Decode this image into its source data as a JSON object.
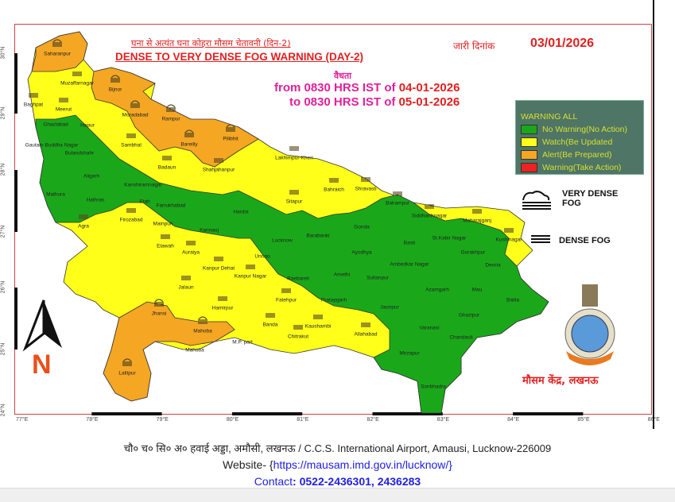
{
  "header": {
    "title_hindi": "घना से अत्यंत घना कोहरा मौसम चेतावनी (दिन-2)",
    "title_english": "DENSE TO VERY DENSE FOG WARNING (DAY-2)",
    "issued_label": "जारी दिनांक",
    "issued_date": "03/01/2026",
    "validity_label": "वैधता",
    "from_text": "from 0830 HRS IST of",
    "from_date": "04-01-2026",
    "to_text": "to 0830 HRS IST of",
    "to_date": "05-01-2026"
  },
  "legend": {
    "title": "WARNING ALL",
    "items": [
      {
        "label": "No Warning(No Action)",
        "color": "#1aa81a"
      },
      {
        "label": "Watch(Be Updated",
        "color": "#ffff1a"
      },
      {
        "label": "Alert(Be Prepared)",
        "color": "#f5a623"
      },
      {
        "label": "Warning(Take Action)",
        "color": "#ee2222"
      }
    ],
    "very_dense_fog": "VERY DENSE FOG",
    "dense_fog": "DENSE FOG"
  },
  "colors": {
    "green": "#1aa81a",
    "yellow": "#ffff1a",
    "orange": "#f5a623",
    "red": "#ee2222",
    "accent": "#e02020"
  },
  "axes": {
    "longitude_ticks": [
      "77°E",
      "78°E",
      "79°E",
      "80°E",
      "81°E",
      "82°E",
      "83°E",
      "84°E",
      "85°E",
      "86°E"
    ],
    "latitude_ticks": [
      "30°N",
      "29°N",
      "28°N",
      "27°N",
      "26°N",
      "25°N",
      "24°N"
    ]
  },
  "north_label": "N",
  "office_name": "मौसम केंद्र, लखनऊ",
  "districts": [
    {
      "name": "Saharanpur",
      "level": "alert",
      "fog": "very-dense"
    },
    {
      "name": "Muzaffarnagar",
      "level": "watch",
      "fog": "dense"
    },
    {
      "name": "Baghpat",
      "level": "watch",
      "fog": "dense"
    },
    {
      "name": "Meerut",
      "level": "watch",
      "fog": "dense"
    },
    {
      "name": "Ghaziabad",
      "level": "none",
      "fog": ""
    },
    {
      "name": "Hapur",
      "level": "none",
      "fog": ""
    },
    {
      "name": "Gautam Buddha Nagar",
      "level": "none",
      "fog": ""
    },
    {
      "name": "Bulandshahr",
      "level": "none",
      "fog": ""
    },
    {
      "name": "Bijnor",
      "level": "alert",
      "fog": "very-dense"
    },
    {
      "name": "Moradabad",
      "level": "alert",
      "fog": "very-dense"
    },
    {
      "name": "Rampur",
      "level": "alert",
      "fog": "very-dense"
    },
    {
      "name": "Bareilly",
      "level": "alert",
      "fog": "very-dense"
    },
    {
      "name": "Pilibhit",
      "level": "alert",
      "fog": "very-dense"
    },
    {
      "name": "Sambhal",
      "level": "watch",
      "fog": "dense"
    },
    {
      "name": "Badaun",
      "level": "watch",
      "fog": "dense"
    },
    {
      "name": "Shahjahanpur",
      "level": "watch",
      "fog": "dense"
    },
    {
      "name": "Lakhimpur-Kheri",
      "level": "watch",
      "fog": "dense"
    },
    {
      "name": "Sitapur",
      "level": "watch",
      "fog": "dense"
    },
    {
      "name": "Bahraich",
      "level": "watch",
      "fog": "dense"
    },
    {
      "name": "Shravasti",
      "level": "watch",
      "fog": "dense"
    },
    {
      "name": "Balrampur",
      "level": "watch",
      "fog": "dense"
    },
    {
      "name": "Siddharthnagar",
      "level": "watch",
      "fog": "dense"
    },
    {
      "name": "Maharajganj",
      "level": "watch",
      "fog": "dense"
    },
    {
      "name": "Kushinagar",
      "level": "watch",
      "fog": "dense"
    },
    {
      "name": "Aligarh",
      "level": "none",
      "fog": ""
    },
    {
      "name": "Mathura",
      "level": "none",
      "fog": ""
    },
    {
      "name": "Hathras",
      "level": "none",
      "fog": ""
    },
    {
      "name": "Kanshiramnagar",
      "level": "none",
      "fog": ""
    },
    {
      "name": "Etah",
      "level": "none",
      "fog": ""
    },
    {
      "name": "Farrukhabad",
      "level": "none",
      "fog": ""
    },
    {
      "name": "Hardoi",
      "level": "none",
      "fog": ""
    },
    {
      "name": "Agra",
      "level": "watch",
      "fog": "dense"
    },
    {
      "name": "Firozabad",
      "level": "watch",
      "fog": "dense"
    },
    {
      "name": "Mainpuri",
      "level": "none",
      "fog": ""
    },
    {
      "name": "Kannauj",
      "level": "none",
      "fog": ""
    },
    {
      "name": "Etawah",
      "level": "watch",
      "fog": "dense"
    },
    {
      "name": "Auraiya",
      "level": "watch",
      "fog": "dense"
    },
    {
      "name": "Kanpur Dehat",
      "level": "watch",
      "fog": "dense"
    },
    {
      "name": "Kanpur Nagar",
      "level": "watch",
      "fog": "dense"
    },
    {
      "name": "Jalaun",
      "level": "watch",
      "fog": "dense"
    },
    {
      "name": "Hamirpur",
      "level": "watch",
      "fog": "dense"
    },
    {
      "name": "Jhansi",
      "level": "alert",
      "fog": "very-dense"
    },
    {
      "name": "Mahoba",
      "level": "alert",
      "fog": "very-dense"
    },
    {
      "name": "Lalitpur",
      "level": "alert",
      "fog": "very-dense"
    },
    {
      "name": "Banda",
      "level": "watch",
      "fog": "dense"
    },
    {
      "name": "Chitrakut",
      "level": "watch",
      "fog": "dense"
    },
    {
      "name": "Fatehpur",
      "level": "watch",
      "fog": "dense"
    },
    {
      "name": "Kaushambi",
      "level": "watch",
      "fog": "dense"
    },
    {
      "name": "Allahabad",
      "level": "watch",
      "fog": "dense"
    },
    {
      "name": "M.P. part",
      "level": "",
      "fog": ""
    },
    {
      "name": "Mahoba",
      "level": "",
      "fog": ""
    },
    {
      "name": "Lucknow",
      "level": "none",
      "fog": ""
    },
    {
      "name": "Barabanki",
      "level": "none",
      "fog": ""
    },
    {
      "name": "Unnao",
      "level": "none",
      "fog": ""
    },
    {
      "name": "Raebareli",
      "level": "none",
      "fog": ""
    },
    {
      "name": "Amethi",
      "level": "none",
      "fog": ""
    },
    {
      "name": "Sultanpur",
      "level": "none",
      "fog": ""
    },
    {
      "name": "Pratapgarh",
      "level": "none",
      "fog": ""
    },
    {
      "name": "Gonda",
      "level": "none",
      "fog": ""
    },
    {
      "name": "Ayodhya",
      "level": "none",
      "fog": ""
    },
    {
      "name": "Basti",
      "level": "none",
      "fog": ""
    },
    {
      "name": "St.Kabir Nagar",
      "level": "none",
      "fog": ""
    },
    {
      "name": "Gorakhpur",
      "level": "none",
      "fog": ""
    },
    {
      "name": "Ambedkar Nagar",
      "level": "none",
      "fog": ""
    },
    {
      "name": "Deoria",
      "level": "none",
      "fog": ""
    },
    {
      "name": "Azamgarh",
      "level": "none",
      "fog": ""
    },
    {
      "name": "Mau",
      "level": "none",
      "fog": ""
    },
    {
      "name": "Ballia",
      "level": "none",
      "fog": ""
    },
    {
      "name": "Jaunpur",
      "level": "none",
      "fog": ""
    },
    {
      "name": "Ghazipur",
      "level": "none",
      "fog": ""
    },
    {
      "name": "Varanasi",
      "level": "none",
      "fog": ""
    },
    {
      "name": "Chandauli",
      "level": "none",
      "fog": ""
    },
    {
      "name": "Mirzapur",
      "level": "none",
      "fog": ""
    },
    {
      "name": "Sonbhadra",
      "level": "none",
      "fog": ""
    }
  ],
  "footer": {
    "address": "चौ० च० सि० अ० हवाई अड्डा, अमौसी, लखनऊ / C.C.S. International Airport, Amausi, Lucknow-226009",
    "website_label": "Website- {",
    "website_url": "https://mausam.imd.gov.in/lucknow/",
    "website_close": "}",
    "contact_label": "Contact",
    "contact_numbers": ": 0522-2436301, 2436283"
  }
}
